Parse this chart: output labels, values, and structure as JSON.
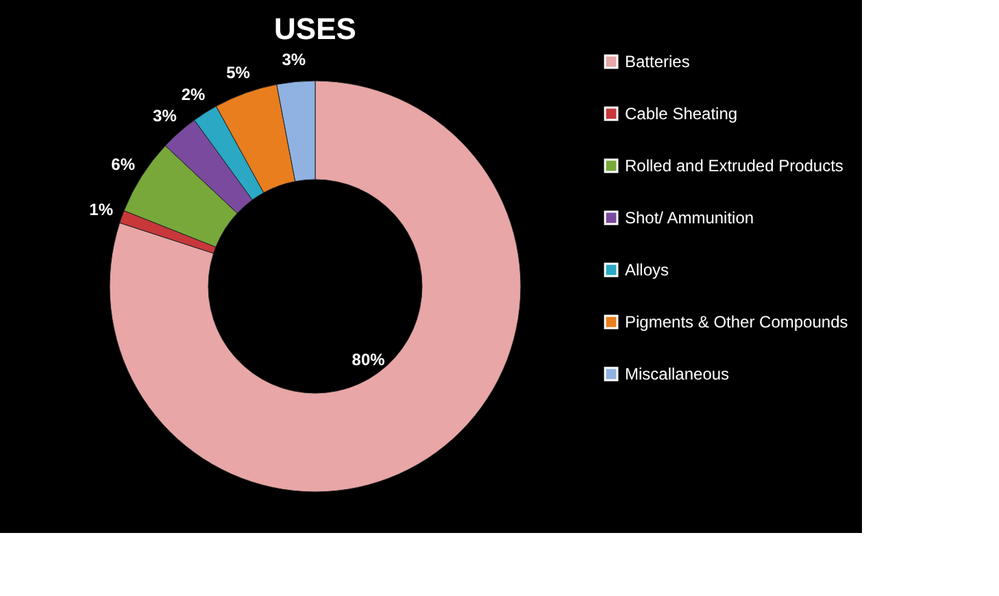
{
  "chart_data": {
    "type": "donut",
    "title": "USES",
    "categories": [
      "Batteries",
      "Cable Sheating",
      "Rolled and Extruded Products",
      "Shot/ Ammunition",
      "Alloys",
      "Pigments & Other Compounds",
      "Miscallaneous"
    ],
    "values": [
      80,
      1,
      6,
      3,
      2,
      5,
      3
    ],
    "colors": [
      "#e8a6a6",
      "#c8373a",
      "#78a83a",
      "#7a4a9e",
      "#2aa8c4",
      "#e87e1e",
      "#8fb2e2"
    ],
    "value_labels": [
      "80%",
      "1%",
      "6%",
      "3%",
      "2%",
      "5%",
      "3%"
    ],
    "legend": "right"
  }
}
